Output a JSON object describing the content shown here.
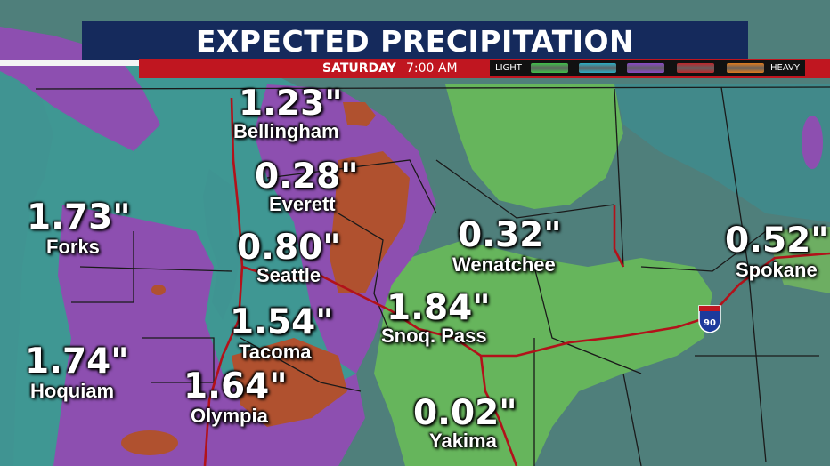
{
  "header": {
    "title": "EXPECTED PRECIPITATION",
    "day": "SATURDAY",
    "time": "7:00 AM"
  },
  "legend": {
    "light_label": "LIGHT",
    "heavy_label": "HEAVY",
    "colors": [
      "#3fc047",
      "#2aaec6",
      "#8a47c8",
      "#c0262a",
      "#e07a1c"
    ]
  },
  "colors": {
    "title_bg": "#152a5c",
    "bar_red": "#c01620",
    "land": "#4f7f7b",
    "light_green": "#66b55c",
    "teal": "#3c9b98",
    "purple": "#8d4fb0",
    "red_brown": "#b0512f"
  },
  "highway_shield": "90",
  "cities": [
    {
      "name": "Bellingham",
      "amount": "1.23\""
    },
    {
      "name": "Everett",
      "amount": "0.28\""
    },
    {
      "name": "Forks",
      "amount": "1.73\""
    },
    {
      "name": "Seattle",
      "amount": "0.80\""
    },
    {
      "name": "Wenatchee",
      "amount": "0.32\""
    },
    {
      "name": "Spokane",
      "amount": "0.52\""
    },
    {
      "name": "Snoq. Pass",
      "amount": "1.84\""
    },
    {
      "name": "Tacoma",
      "amount": "1.54\""
    },
    {
      "name": "Hoquiam",
      "amount": "1.74\""
    },
    {
      "name": "Olympia",
      "amount": "1.64\""
    },
    {
      "name": "Yakima",
      "amount": "0.02\""
    }
  ]
}
